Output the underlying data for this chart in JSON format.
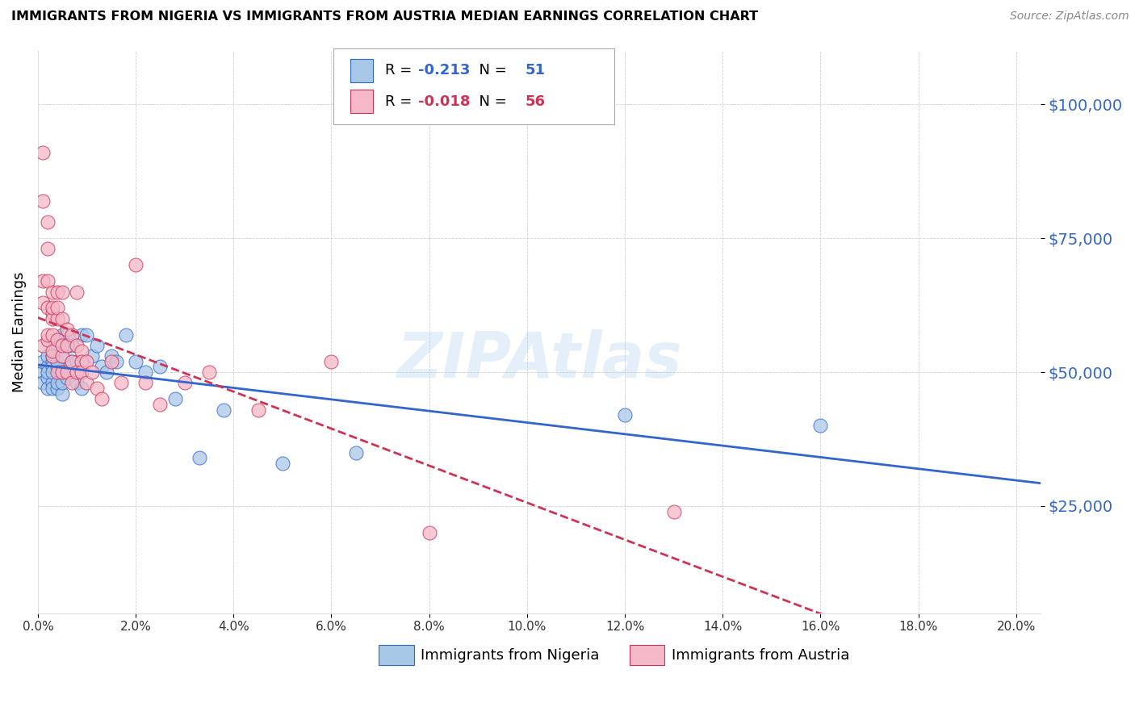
{
  "title": "IMMIGRANTS FROM NIGERIA VS IMMIGRANTS FROM AUSTRIA MEDIAN EARNINGS CORRELATION CHART",
  "source": "Source: ZipAtlas.com",
  "ylabel": "Median Earnings",
  "ytick_labels": [
    "$25,000",
    "$50,000",
    "$75,000",
    "$100,000"
  ],
  "ytick_values": [
    25000,
    50000,
    75000,
    100000
  ],
  "ylim": [
    5000,
    110000
  ],
  "xlim": [
    0.0,
    0.205
  ],
  "watermark": "ZIPAtlas",
  "nigeria_R": -0.213,
  "nigeria_N": 51,
  "austria_R": -0.018,
  "austria_N": 56,
  "nigeria_color": "#a8c8e8",
  "austria_color": "#f5b8c8",
  "nigeria_line_color": "#3366CC",
  "austria_line_color": "#CC3355",
  "nigeria_x": [
    0.001,
    0.001,
    0.001,
    0.002,
    0.002,
    0.002,
    0.002,
    0.002,
    0.003,
    0.003,
    0.003,
    0.003,
    0.003,
    0.003,
    0.004,
    0.004,
    0.004,
    0.004,
    0.004,
    0.005,
    0.005,
    0.005,
    0.005,
    0.005,
    0.006,
    0.006,
    0.006,
    0.007,
    0.007,
    0.008,
    0.008,
    0.009,
    0.009,
    0.01,
    0.011,
    0.012,
    0.013,
    0.014,
    0.015,
    0.016,
    0.018,
    0.02,
    0.022,
    0.025,
    0.028,
    0.033,
    0.038,
    0.05,
    0.065,
    0.12,
    0.16
  ],
  "nigeria_y": [
    50000,
    48000,
    52000,
    51000,
    49000,
    47000,
    53000,
    50000,
    52000,
    48000,
    51000,
    47000,
    50000,
    53000,
    55000,
    47000,
    51000,
    48000,
    52000,
    57000,
    46000,
    50000,
    53000,
    48000,
    57000,
    55000,
    49000,
    55000,
    52000,
    52000,
    48000,
    57000,
    47000,
    57000,
    53000,
    55000,
    51000,
    50000,
    53000,
    52000,
    57000,
    52000,
    50000,
    51000,
    45000,
    34000,
    43000,
    33000,
    35000,
    42000,
    40000
  ],
  "austria_x": [
    0.001,
    0.001,
    0.001,
    0.001,
    0.001,
    0.002,
    0.002,
    0.002,
    0.002,
    0.002,
    0.002,
    0.003,
    0.003,
    0.003,
    0.003,
    0.003,
    0.003,
    0.003,
    0.004,
    0.004,
    0.004,
    0.004,
    0.004,
    0.005,
    0.005,
    0.005,
    0.005,
    0.005,
    0.006,
    0.006,
    0.006,
    0.007,
    0.007,
    0.007,
    0.008,
    0.008,
    0.008,
    0.009,
    0.009,
    0.009,
    0.01,
    0.01,
    0.011,
    0.012,
    0.013,
    0.015,
    0.017,
    0.02,
    0.022,
    0.025,
    0.03,
    0.035,
    0.045,
    0.06,
    0.08,
    0.13
  ],
  "austria_y": [
    91000,
    82000,
    63000,
    67000,
    55000,
    78000,
    73000,
    62000,
    67000,
    56000,
    57000,
    65000,
    61000,
    57000,
    53000,
    60000,
    54000,
    62000,
    65000,
    60000,
    56000,
    62000,
    50000,
    65000,
    60000,
    53000,
    50000,
    55000,
    58000,
    55000,
    50000,
    57000,
    52000,
    48000,
    65000,
    50000,
    55000,
    54000,
    52000,
    50000,
    52000,
    48000,
    50000,
    47000,
    45000,
    52000,
    48000,
    70000,
    48000,
    44000,
    48000,
    50000,
    43000,
    52000,
    20000,
    24000
  ],
  "xtick_vals": [
    0.0,
    0.02,
    0.04,
    0.06,
    0.08,
    0.1,
    0.12,
    0.14,
    0.16,
    0.18,
    0.2
  ],
  "xtick_labels": [
    "0.0%",
    "2.0%",
    "4.0%",
    "6.0%",
    "8.0%",
    "10.0%",
    "12.0%",
    "14.0%",
    "16.0%",
    "18.0%",
    "20.0%"
  ]
}
